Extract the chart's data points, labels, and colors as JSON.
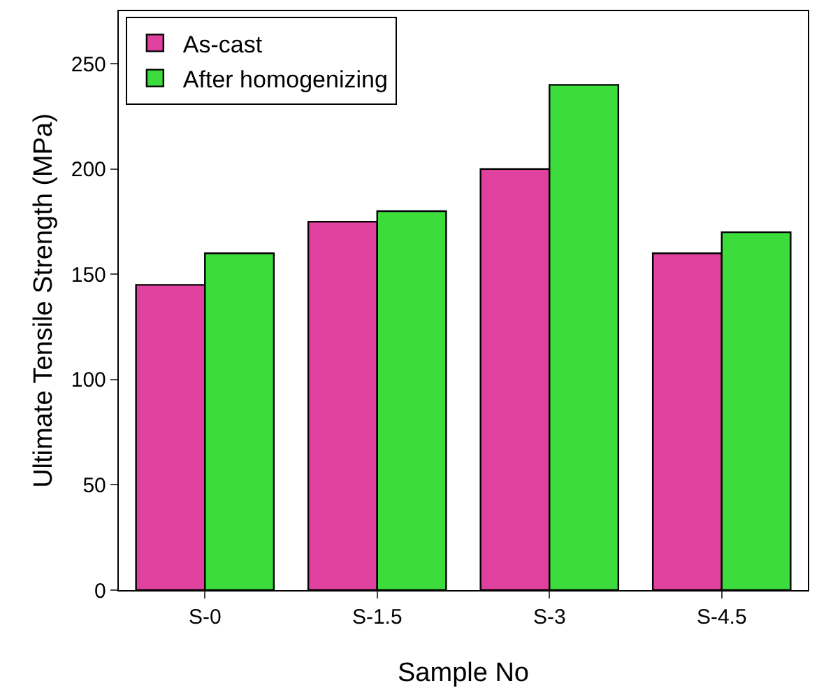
{
  "chart_data": {
    "type": "bar",
    "xlabel": "Sample No",
    "ylabel": "Ultimate Tensile Strength (MPa)",
    "categories": [
      "S-0",
      "S-1.5",
      "S-3",
      "S-4.5"
    ],
    "series": [
      {
        "name": "As-cast",
        "color": "#e0409e",
        "values": [
          145,
          175,
          200,
          160
        ]
      },
      {
        "name": "After homogenizing",
        "color": "#3ddc3d",
        "values": [
          160,
          180,
          240,
          170
        ]
      }
    ],
    "ylim": [
      0,
      275
    ],
    "yticks": [
      0,
      50,
      100,
      150,
      200,
      250
    ],
    "grid": false,
    "legend": "top left"
  }
}
